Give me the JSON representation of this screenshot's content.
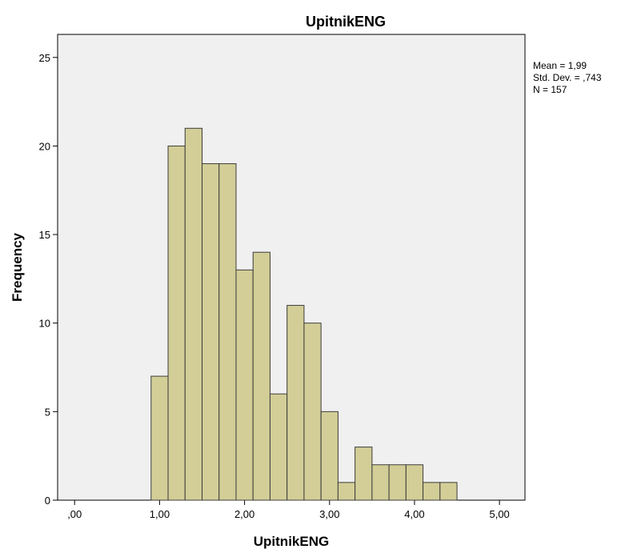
{
  "colors": {
    "plot_background": "#f0f0f0",
    "bar_fill": "#d3ce97",
    "bar_stroke": "#3c3c3c",
    "axis": "#000000"
  },
  "stats": {
    "mean": "Mean = 1,99",
    "std_dev": "Std. Dev. = ,743",
    "n": "N = 157"
  },
  "chart_data": {
    "type": "bar",
    "title": "UpitnikENG",
    "xlabel": "UpitnikENG",
    "ylabel": "Frequency",
    "xlim": [
      -0.2,
      5.3
    ],
    "ylim": [
      0,
      26.3
    ],
    "x_ticks": [
      0,
      1,
      2,
      3,
      4,
      5
    ],
    "x_tick_labels": [
      ",00",
      "1,00",
      "2,00",
      "3,00",
      "4,00",
      "5,00"
    ],
    "y_ticks": [
      0,
      5,
      10,
      15,
      20,
      25
    ],
    "y_tick_labels": [
      "0",
      "5",
      "10",
      "15",
      "20",
      "25"
    ],
    "bin_width": 0.2,
    "bins_start": [
      0.9,
      1.1,
      1.3,
      1.5,
      1.7,
      1.9,
      2.1,
      2.3,
      2.5,
      2.7,
      2.9,
      3.1,
      3.3,
      3.5,
      3.7,
      3.9,
      4.1,
      4.3
    ],
    "values": [
      7,
      20,
      21,
      19,
      19,
      13,
      14,
      6,
      11,
      10,
      5,
      1,
      3,
      2,
      2,
      2,
      1,
      1
    ],
    "grid": false,
    "legend": "none"
  }
}
